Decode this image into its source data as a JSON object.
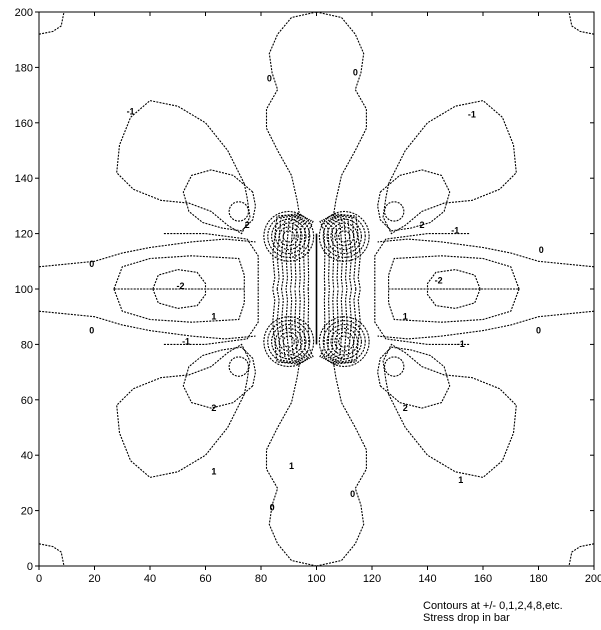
{
  "chart_data": {
    "type": "contour",
    "title": "",
    "xlabel": "",
    "ylabel": "",
    "xlim": [
      0,
      200
    ],
    "ylim": [
      0,
      200
    ],
    "x_ticks": [
      0,
      20,
      40,
      60,
      80,
      100,
      120,
      140,
      160,
      180,
      200
    ],
    "y_ticks": [
      0,
      20,
      40,
      60,
      80,
      100,
      120,
      140,
      160,
      180,
      200
    ],
    "grid": false,
    "contour_levels_shown": [
      2,
      1,
      0,
      -1,
      -2
    ],
    "fault": {
      "x": 100,
      "y_range": [
        80,
        120
      ]
    },
    "contour_labels": [
      {
        "text": "0",
        "x": 83,
        "y": 175
      },
      {
        "text": "-1",
        "x": 33,
        "y": 163
      },
      {
        "text": "-1",
        "x": 156,
        "y": 162
      },
      {
        "text": "0",
        "x": 114,
        "y": 177
      },
      {
        "text": "2",
        "x": 75,
        "y": 122
      },
      {
        "text": "2",
        "x": 138,
        "y": 122
      },
      {
        "text": "-1",
        "x": 150,
        "y": 120
      },
      {
        "text": "0",
        "x": 19,
        "y": 108
      },
      {
        "text": "0",
        "x": 181,
        "y": 113
      },
      {
        "text": "-2",
        "x": 51,
        "y": 100
      },
      {
        "text": "-2",
        "x": 144,
        "y": 102
      },
      {
        "text": "1",
        "x": 63,
        "y": 89
      },
      {
        "text": "1",
        "x": 132,
        "y": 89
      },
      {
        "text": "0",
        "x": 19,
        "y": 84
      },
      {
        "text": "0",
        "x": 180,
        "y": 84
      },
      {
        "text": "-1",
        "x": 53,
        "y": 80
      },
      {
        "text": "-1",
        "x": 152,
        "y": 79
      },
      {
        "text": "2",
        "x": 63,
        "y": 56
      },
      {
        "text": "2",
        "x": 132,
        "y": 56
      },
      {
        "text": "1",
        "x": 63,
        "y": 33
      },
      {
        "text": "1",
        "x": 152,
        "y": 30
      },
      {
        "text": "1",
        "x": 91,
        "y": 35
      },
      {
        "text": "0",
        "x": 84,
        "y": 20
      },
      {
        "text": "0",
        "x": 113,
        "y": 25
      }
    ]
  },
  "notes": {
    "line1": "Contours at +/- 0,1,2,4,8,etc.",
    "line2": "Stress drop in bar"
  }
}
